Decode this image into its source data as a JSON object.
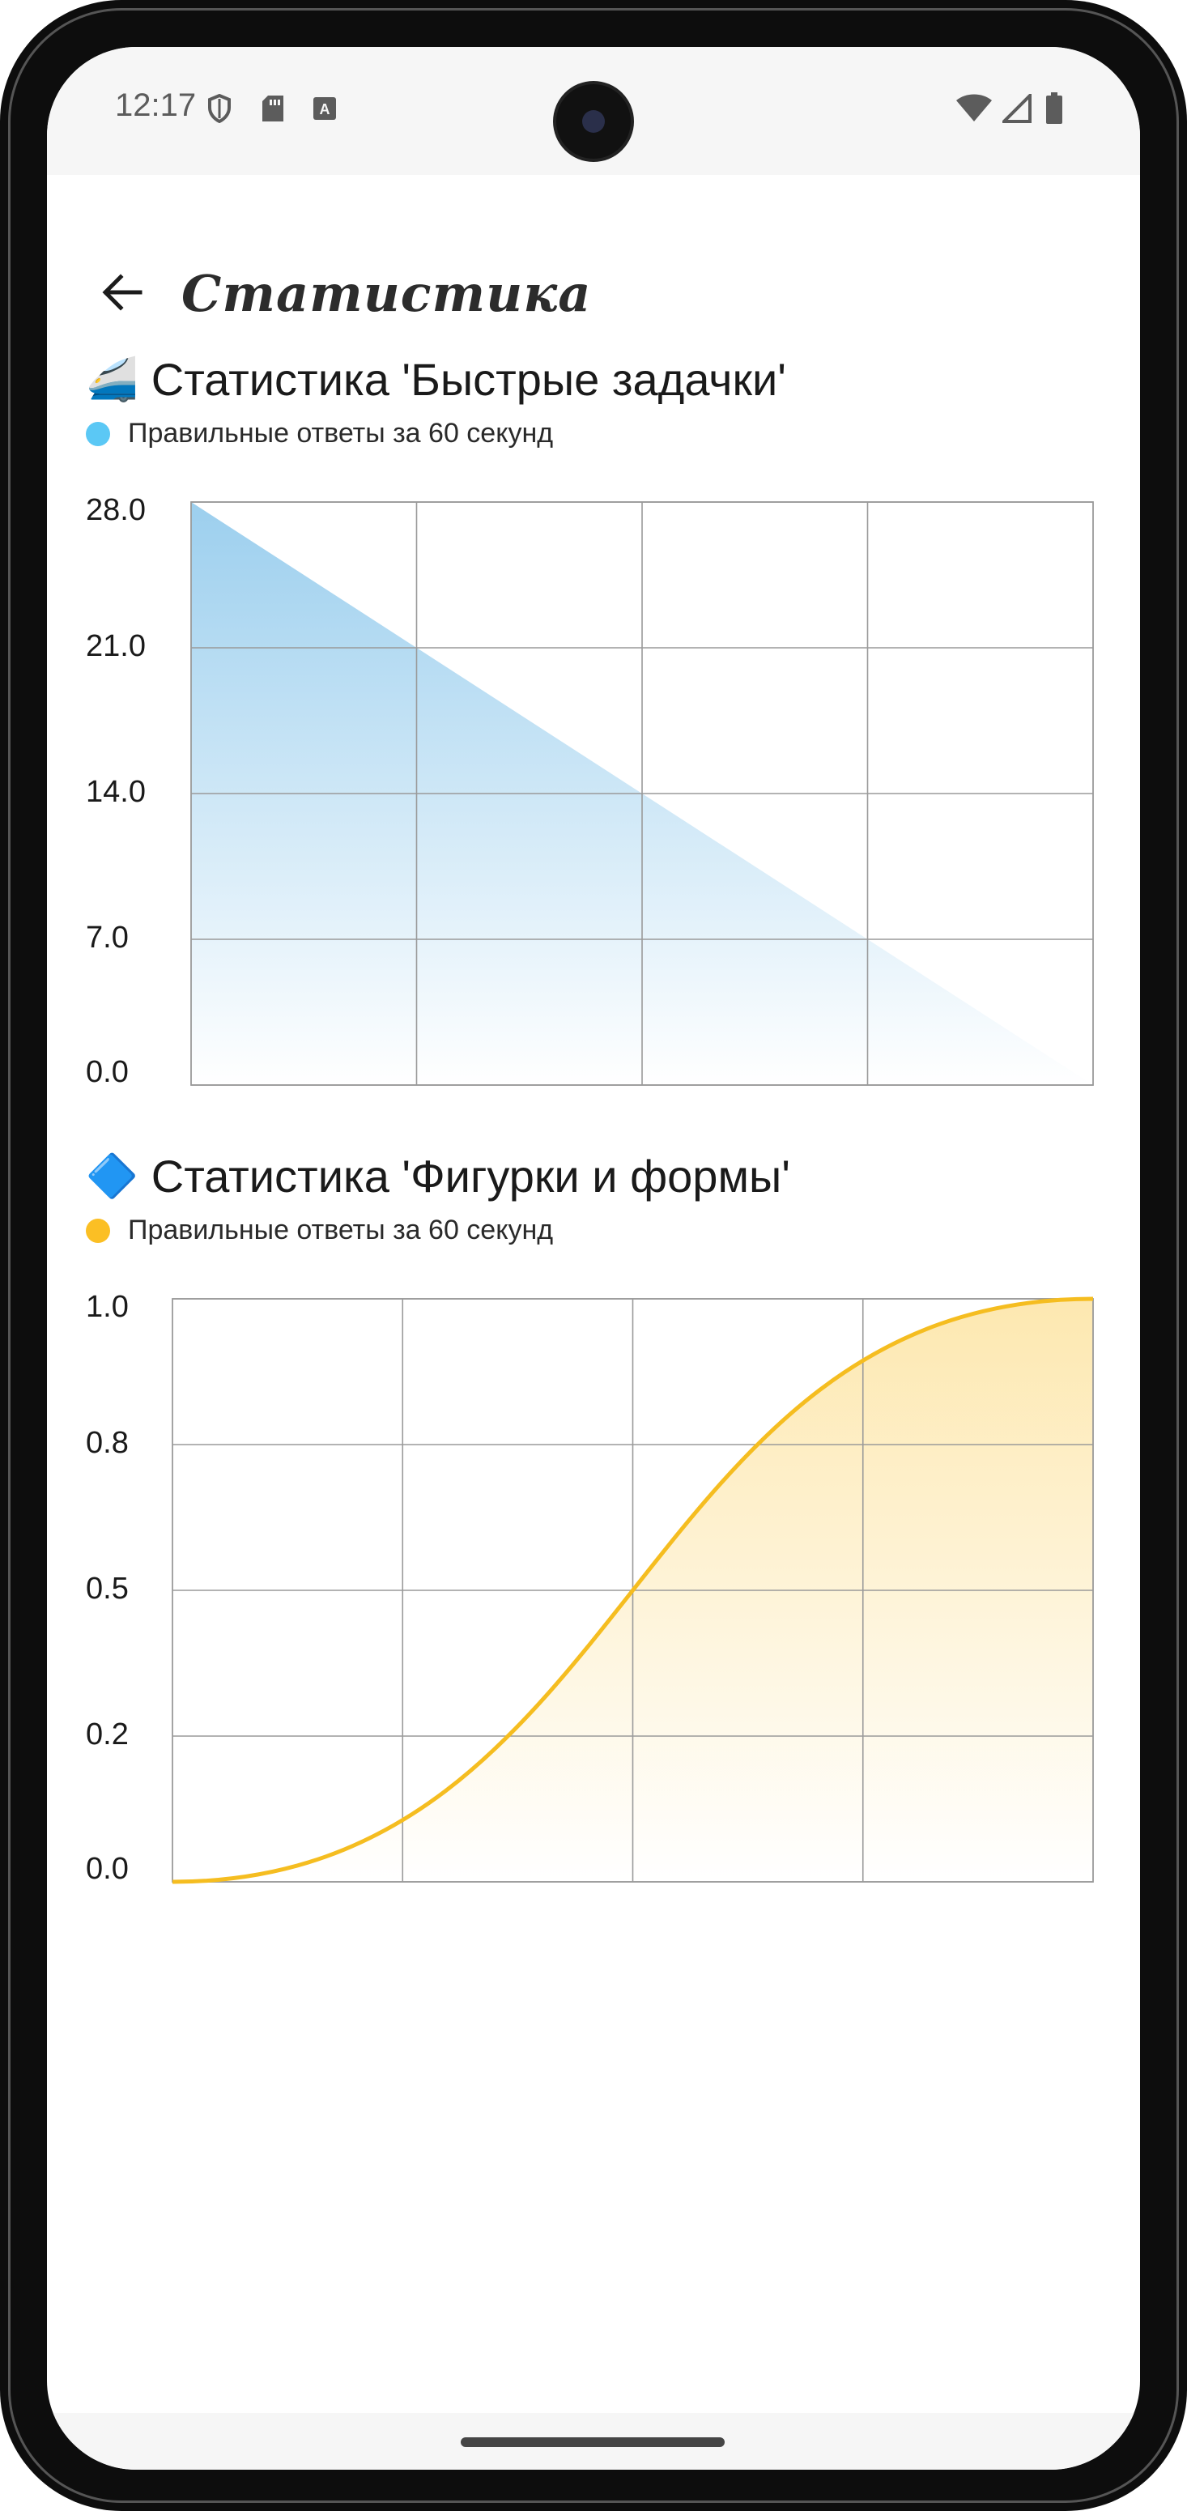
{
  "status_bar": {
    "time": "12:17",
    "icons_left": [
      "shield-icon",
      "sd-card-icon",
      "font-icon"
    ],
    "icons_right": [
      "wifi-icon",
      "signal-icon",
      "battery-icon"
    ]
  },
  "app_bar": {
    "back_icon": "arrow-left-icon",
    "title": "Статистика"
  },
  "sections": [
    {
      "emoji": "🚄",
      "title": "Статистика 'Быстрые задачки'",
      "legend": "Правильные ответы за 60 секунд",
      "color": "#5bc8f5"
    },
    {
      "emoji": "🔷",
      "title": "Статистика 'Фигурки и формы'",
      "legend": "Правильные ответы за 60 секунд",
      "color": "#fbbf24"
    }
  ],
  "chart_data": [
    {
      "type": "area",
      "title": "Статистика 'Быстрые задачки'",
      "series": [
        {
          "name": "Правильные ответы за 60 секунд",
          "values": [
            28,
            0
          ]
        }
      ],
      "x": [
        0,
        4
      ],
      "ylim": [
        0,
        28
      ],
      "xlim": [
        0,
        4
      ],
      "ytick_labels": [
        "0.0",
        "7.0",
        "14.0",
        "21.0",
        "28.0"
      ],
      "ytick_values": [
        0,
        7,
        14,
        21,
        28
      ],
      "x_gridlines": [
        1,
        2,
        3
      ],
      "grid": true,
      "line_color": "#5bb6ea",
      "fill_top": "#9ccfee",
      "fill_bottom": "#ffffff",
      "show_line": false
    },
    {
      "type": "area",
      "title": "Статистика 'Фигурки и формы'",
      "series": [
        {
          "name": "Правильные ответы за 60 секунд",
          "values": [
            0,
            1
          ]
        }
      ],
      "x": [
        0,
        4
      ],
      "curve": "smooth",
      "ylim": [
        0,
        1
      ],
      "xlim": [
        0,
        4
      ],
      "ytick_labels": [
        "0.0",
        "0.2",
        "0.5",
        "0.8",
        "1.0"
      ],
      "ytick_values": [
        0,
        0.25,
        0.5,
        0.75,
        1
      ],
      "x_gridlines": [
        1,
        2,
        3
      ],
      "grid": true,
      "line_color": "#f5bd20",
      "fill_top": "#fde8b0",
      "fill_bottom": "#ffffff",
      "show_line": true
    }
  ]
}
